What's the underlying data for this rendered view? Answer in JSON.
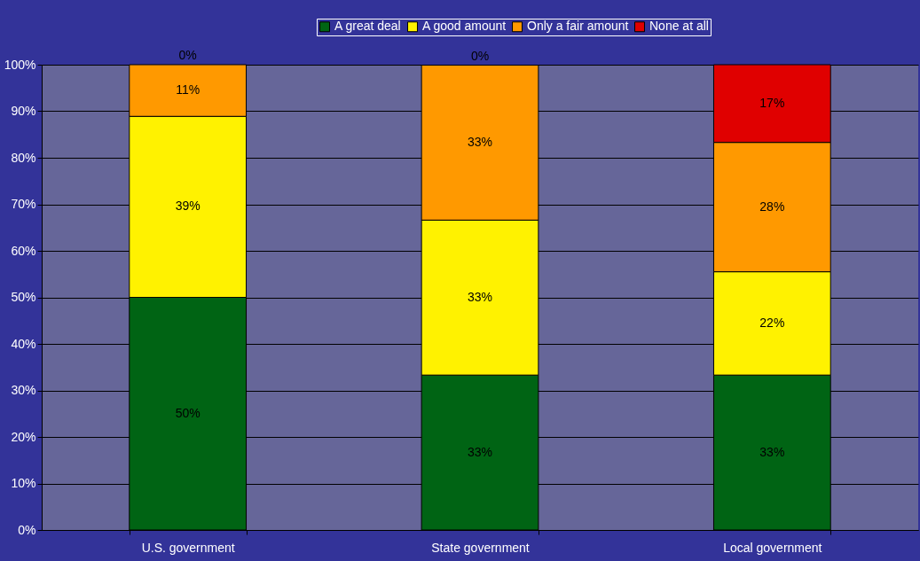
{
  "chart_data": {
    "type": "bar",
    "stacked": true,
    "categories": [
      "U.S. government",
      "State government",
      "Local government"
    ],
    "series": [
      {
        "name": "A great deal",
        "color": "#006414",
        "values": [
          50,
          33.3,
          33.3
        ],
        "value_labels": [
          "50%",
          "33%",
          "33%"
        ]
      },
      {
        "name": "A good amount",
        "color": "#fff200",
        "values": [
          38.9,
          33.3,
          22.2
        ],
        "value_labels": [
          "39%",
          "33%",
          "22%"
        ]
      },
      {
        "name": "Only a fair amount",
        "color": "#ff9900",
        "values": [
          11.1,
          33.3,
          27.8
        ],
        "value_labels": [
          "11%",
          "33%",
          "28%"
        ]
      },
      {
        "name": "None at all",
        "color": "#e00000",
        "values": [
          0,
          0,
          16.7
        ],
        "value_labels": [
          "0%",
          "0%",
          "17%"
        ]
      }
    ],
    "ylim": [
      0,
      100
    ],
    "yticks": [
      {
        "value": 0,
        "label": "0%"
      },
      {
        "value": 10,
        "label": "10%"
      },
      {
        "value": 20,
        "label": "20%"
      },
      {
        "value": 30,
        "label": "30%"
      },
      {
        "value": 40,
        "label": "40%"
      },
      {
        "value": 50,
        "label": "50%"
      },
      {
        "value": 60,
        "label": "60%"
      },
      {
        "value": 70,
        "label": "70%"
      },
      {
        "value": 80,
        "label": "80%"
      },
      {
        "value": 90,
        "label": "90%"
      },
      {
        "value": 100,
        "label": "100%"
      }
    ],
    "grid": "y",
    "legend": "top"
  }
}
